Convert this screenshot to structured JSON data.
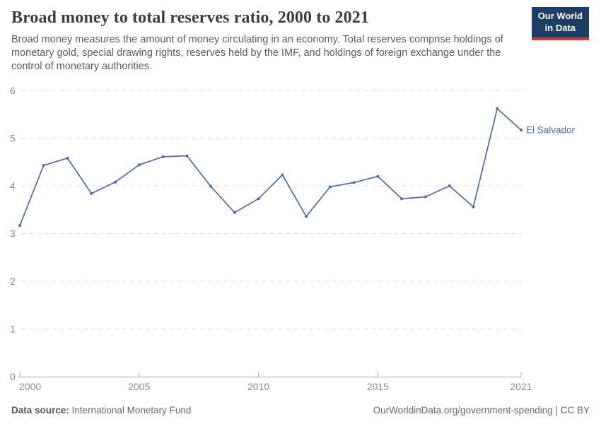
{
  "header": {
    "title": "Broad money to total reserves ratio, 2000 to 2021",
    "subtitle": "Broad money measures the amount of money circulating in an economy. Total reserves comprise holdings of monetary gold, special drawing rights, reserves held by the IMF, and holdings of foreign exchange under the control of monetary authorities.",
    "logo": {
      "line1": "Our World",
      "line2": "in Data",
      "bg_color": "#1d3d63",
      "accent_color": "#cf3c31"
    }
  },
  "footer": {
    "data_source_label": "Data source:",
    "data_source_value": "International Monetary Fund",
    "attribution": "OurWorldinData.org/government-spending | CC BY"
  },
  "chart_data": {
    "type": "line",
    "title": "Broad money to total reserves ratio, 2000 to 2021",
    "xlabel": "",
    "ylabel": "",
    "x": [
      2000,
      2001,
      2002,
      2003,
      2004,
      2005,
      2006,
      2007,
      2008,
      2009,
      2010,
      2011,
      2012,
      2013,
      2014,
      2015,
      2016,
      2017,
      2018,
      2019,
      2020,
      2021
    ],
    "series": [
      {
        "name": "El Salvador",
        "values": [
          3.17,
          4.43,
          4.58,
          3.84,
          4.08,
          4.44,
          4.61,
          4.63,
          3.99,
          3.44,
          3.73,
          4.23,
          3.36,
          3.98,
          4.07,
          4.2,
          3.73,
          3.77,
          4.0,
          3.56,
          5.62,
          5.17
        ]
      }
    ],
    "ylim": [
      0,
      6
    ],
    "y_ticks": [
      0,
      1,
      2,
      3,
      4,
      5,
      6
    ],
    "x_ticks": [
      2000,
      2005,
      2010,
      2015,
      2021
    ],
    "grid": "horizontal-dashed",
    "legend_position": "end-of-line-label",
    "line_color": "#4c6ba5",
    "grid_color": "#dcdcdc",
    "axis_color": "#a3a3a3",
    "axis_label_color": "#8a8a8a"
  }
}
